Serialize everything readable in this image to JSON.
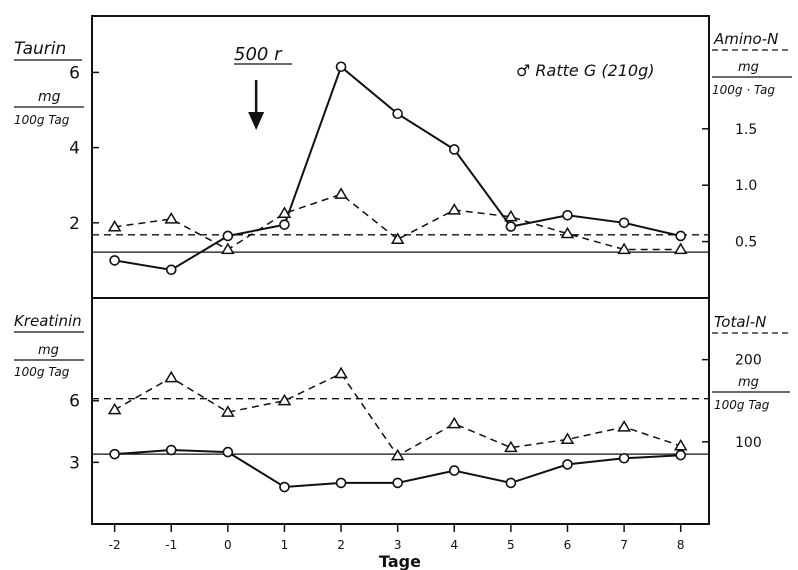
{
  "chart_data": [
    {
      "type": "line",
      "panel": "upper",
      "annotation": "♂ Ratte G (210g)",
      "dose_label": "500 r",
      "dose_at_x": 0.5,
      "xlim": [
        -2.4,
        8.5
      ],
      "left_axis": {
        "title": "Taurin",
        "unit_top": "mg",
        "unit_bottom": "100g Tag",
        "ylim": [
          0,
          7.5
        ],
        "ticks": [
          "2",
          "4",
          "6"
        ],
        "tick_values": [
          2,
          4,
          6
        ]
      },
      "right_axis": {
        "title": "Amino-N",
        "unit_top": "mg",
        "unit_bottom": "100g · Tag",
        "ylim": [
          0,
          2.5
        ],
        "ticks": [
          "0.5",
          "1.0",
          "1.5"
        ],
        "tick_values": [
          0.5,
          1.0,
          1.5
        ]
      },
      "series": [
        {
          "marker": "circle",
          "line": "solid",
          "axis": "left",
          "x": [
            -2,
            -1,
            0,
            1,
            2,
            3,
            4,
            5,
            6,
            7,
            8
          ],
          "values": [
            1.0,
            0.75,
            1.65,
            1.95,
            6.15,
            4.9,
            3.95,
            1.9,
            2.2,
            2.0,
            1.65
          ]
        },
        {
          "marker": "triangle",
          "line": "dashed",
          "axis": "right",
          "x": [
            -2,
            -1,
            0,
            1,
            2,
            3,
            4,
            5,
            6,
            7,
            8
          ],
          "values": [
            0.63,
            0.7,
            0.43,
            0.75,
            0.92,
            0.52,
            0.78,
            0.72,
            0.57,
            0.43,
            0.43
          ]
        }
      ],
      "reference_lines": [
        {
          "style": "solid",
          "axis": "left",
          "value": 1.22
        },
        {
          "style": "dashed",
          "axis": "left",
          "value": 1.68
        }
      ]
    },
    {
      "type": "line",
      "panel": "lower",
      "xlabel": "Tage",
      "x_ticks": [
        "-2",
        "-1",
        "0",
        "1",
        "2",
        "3",
        "4",
        "5",
        "6",
        "7",
        "8"
      ],
      "xlim": [
        -2.4,
        8.5
      ],
      "left_axis": {
        "title": "Kreatinin",
        "unit_top": "mg",
        "unit_bottom": "100g Tag",
        "ylim": [
          0,
          11
        ],
        "ticks": [
          "3",
          "6"
        ],
        "tick_values": [
          3,
          6
        ]
      },
      "right_axis": {
        "title": "Total-N",
        "unit_top": "mg",
        "unit_bottom": "100g Tag",
        "ylim": [
          0,
          275
        ],
        "ticks": [
          "100",
          "200"
        ],
        "tick_values": [
          100,
          200
        ]
      },
      "series": [
        {
          "marker": "circle",
          "line": "solid",
          "axis": "left",
          "x": [
            -2,
            -1,
            0,
            1,
            2,
            3,
            4,
            5,
            6,
            7,
            8
          ],
          "values": [
            3.4,
            3.6,
            3.5,
            1.8,
            2.0,
            2.0,
            2.6,
            2.0,
            2.9,
            3.2,
            3.35
          ]
        },
        {
          "marker": "triangle",
          "line": "dashed",
          "axis": "right",
          "x": [
            -2,
            -1,
            0,
            1,
            2,
            3,
            4,
            5,
            6,
            7,
            8
          ],
          "values": [
            139,
            178,
            136,
            150,
            183,
            83,
            122,
            93,
            103,
            118,
            95
          ]
        }
      ],
      "reference_lines": [
        {
          "style": "solid",
          "axis": "left",
          "value": 3.4
        },
        {
          "style": "dashed",
          "axis": "left",
          "value": 6.1
        }
      ]
    }
  ]
}
